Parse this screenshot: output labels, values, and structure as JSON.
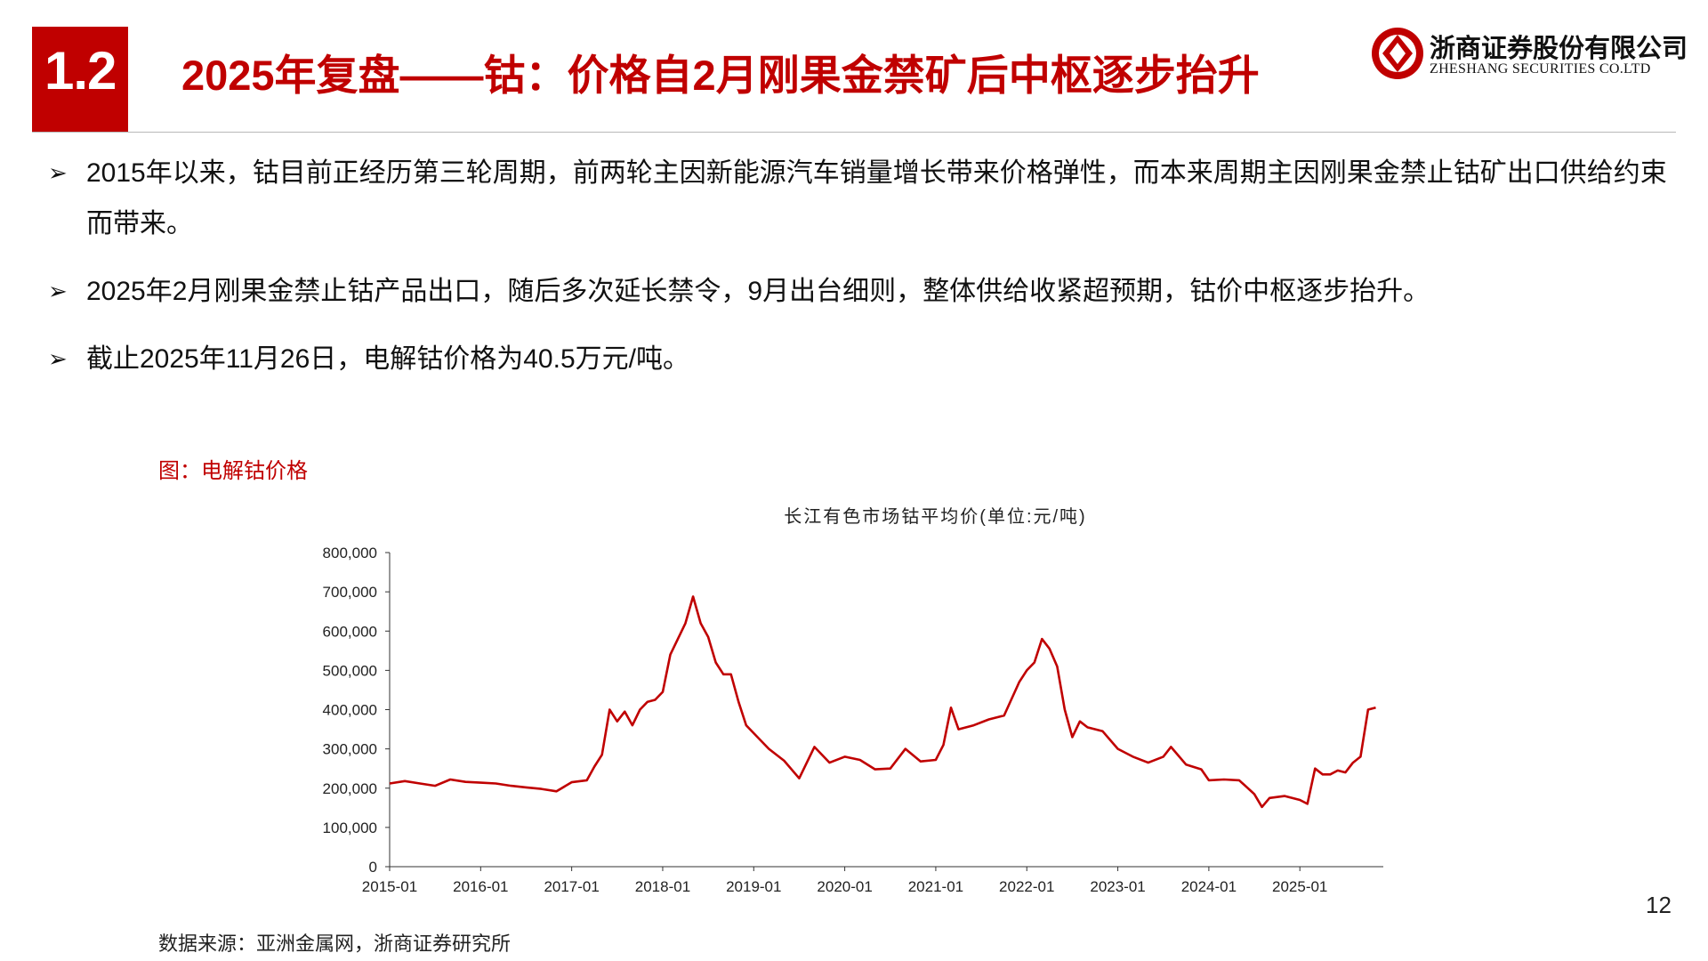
{
  "header": {
    "section_number": "1.2",
    "title": "2025年复盘——钴：价格自2月刚果金禁矿后中枢逐步抬升"
  },
  "logo": {
    "name_cn": "浙商证券股份有限公司",
    "name_en": "ZHESHANG SECURITIES CO.LTD",
    "mark_icon": "zheshang-logo-icon"
  },
  "bullets": [
    "2015年以来，钴目前正经历第三轮周期，前两轮主因新能源汽车销量增长带来价格弹性，而本来周期主因刚果金禁止钴矿出口供给约束而带来。",
    "2025年2月刚果金禁止钴产品出口，随后多次延长禁令，9月出台细则，整体供给收紧超预期，钴价中枢逐步抬升。",
    "截止2025年11月26日，电解钴价格为40.5万元/吨。"
  ],
  "bullet_icon": "arrowhead-bullet-icon",
  "figure": {
    "caption": "图：电解钴价格",
    "source": "数据来源：亚洲金属网，浙商证券研究所"
  },
  "chart_data": {
    "type": "line",
    "title": "长江有色市场钴平均价(单位:元/吨)",
    "xlabel": "",
    "ylabel": "",
    "x_ticks": [
      "2015-01",
      "2016-01",
      "2017-01",
      "2018-01",
      "2019-01",
      "2020-01",
      "2021-01",
      "2022-01",
      "2023-01",
      "2024-01",
      "2025-01"
    ],
    "y_ticks": [
      "0",
      "100,000",
      "200,000",
      "300,000",
      "400,000",
      "500,000",
      "600,000",
      "700,000",
      "800,000"
    ],
    "ylim": [
      0,
      800000
    ],
    "xlim": [
      "2015-01",
      "2025-12"
    ],
    "grid": false,
    "line_color": "#c00000",
    "series": [
      {
        "points": [
          [
            "2015-01",
            212000
          ],
          [
            "2015-03",
            218000
          ],
          [
            "2015-05",
            212000
          ],
          [
            "2015-07",
            206000
          ],
          [
            "2015-09",
            222000
          ],
          [
            "2015-11",
            216000
          ],
          [
            "2016-01",
            214000
          ],
          [
            "2016-03",
            212000
          ],
          [
            "2016-05",
            206000
          ],
          [
            "2016-07",
            202000
          ],
          [
            "2016-09",
            198000
          ],
          [
            "2016-11",
            192000
          ],
          [
            "2017-01",
            215000
          ],
          [
            "2017-03",
            220000
          ],
          [
            "2017-04",
            255000
          ],
          [
            "2017-05",
            285000
          ],
          [
            "2017-06",
            400000
          ],
          [
            "2017-07",
            370000
          ],
          [
            "2017-08",
            395000
          ],
          [
            "2017-09",
            360000
          ],
          [
            "2017-10",
            400000
          ],
          [
            "2017-11",
            420000
          ],
          [
            "2017-12",
            425000
          ],
          [
            "2018-01",
            445000
          ],
          [
            "2018-02",
            540000
          ],
          [
            "2018-03",
            580000
          ],
          [
            "2018-04",
            620000
          ],
          [
            "2018-05",
            688000
          ],
          [
            "2018-06",
            620000
          ],
          [
            "2018-07",
            585000
          ],
          [
            "2018-08",
            520000
          ],
          [
            "2018-09",
            490000
          ],
          [
            "2018-10",
            490000
          ],
          [
            "2018-11",
            420000
          ],
          [
            "2018-12",
            360000
          ],
          [
            "2019-01",
            340000
          ],
          [
            "2019-03",
            300000
          ],
          [
            "2019-05",
            270000
          ],
          [
            "2019-07",
            225000
          ],
          [
            "2019-09",
            305000
          ],
          [
            "2019-11",
            265000
          ],
          [
            "2020-01",
            280000
          ],
          [
            "2020-03",
            272000
          ],
          [
            "2020-05",
            248000
          ],
          [
            "2020-07",
            250000
          ],
          [
            "2020-09",
            300000
          ],
          [
            "2020-11",
            268000
          ],
          [
            "2021-01",
            272000
          ],
          [
            "2021-02",
            310000
          ],
          [
            "2021-03",
            405000
          ],
          [
            "2021-04",
            350000
          ],
          [
            "2021-06",
            360000
          ],
          [
            "2021-08",
            375000
          ],
          [
            "2021-10",
            385000
          ],
          [
            "2021-12",
            470000
          ],
          [
            "2022-01",
            500000
          ],
          [
            "2022-02",
            520000
          ],
          [
            "2022-03",
            580000
          ],
          [
            "2022-04",
            555000
          ],
          [
            "2022-05",
            510000
          ],
          [
            "2022-06",
            400000
          ],
          [
            "2022-07",
            330000
          ],
          [
            "2022-08",
            370000
          ],
          [
            "2022-09",
            355000
          ],
          [
            "2022-11",
            345000
          ],
          [
            "2023-01",
            300000
          ],
          [
            "2023-03",
            280000
          ],
          [
            "2023-05",
            265000
          ],
          [
            "2023-07",
            280000
          ],
          [
            "2023-08",
            305000
          ],
          [
            "2023-10",
            260000
          ],
          [
            "2023-12",
            248000
          ],
          [
            "2024-01",
            220000
          ],
          [
            "2024-03",
            222000
          ],
          [
            "2024-05",
            220000
          ],
          [
            "2024-07",
            185000
          ],
          [
            "2024-08",
            152000
          ],
          [
            "2024-09",
            175000
          ],
          [
            "2024-11",
            180000
          ],
          [
            "2025-01",
            170000
          ],
          [
            "2025-02",
            160000
          ],
          [
            "2025-03",
            250000
          ],
          [
            "2025-04",
            235000
          ],
          [
            "2025-05",
            235000
          ],
          [
            "2025-06",
            245000
          ],
          [
            "2025-07",
            240000
          ],
          [
            "2025-08",
            265000
          ],
          [
            "2025-09",
            280000
          ],
          [
            "2025-10",
            400000
          ],
          [
            "2025-11",
            405000
          ]
        ]
      }
    ]
  },
  "page_number": "12"
}
